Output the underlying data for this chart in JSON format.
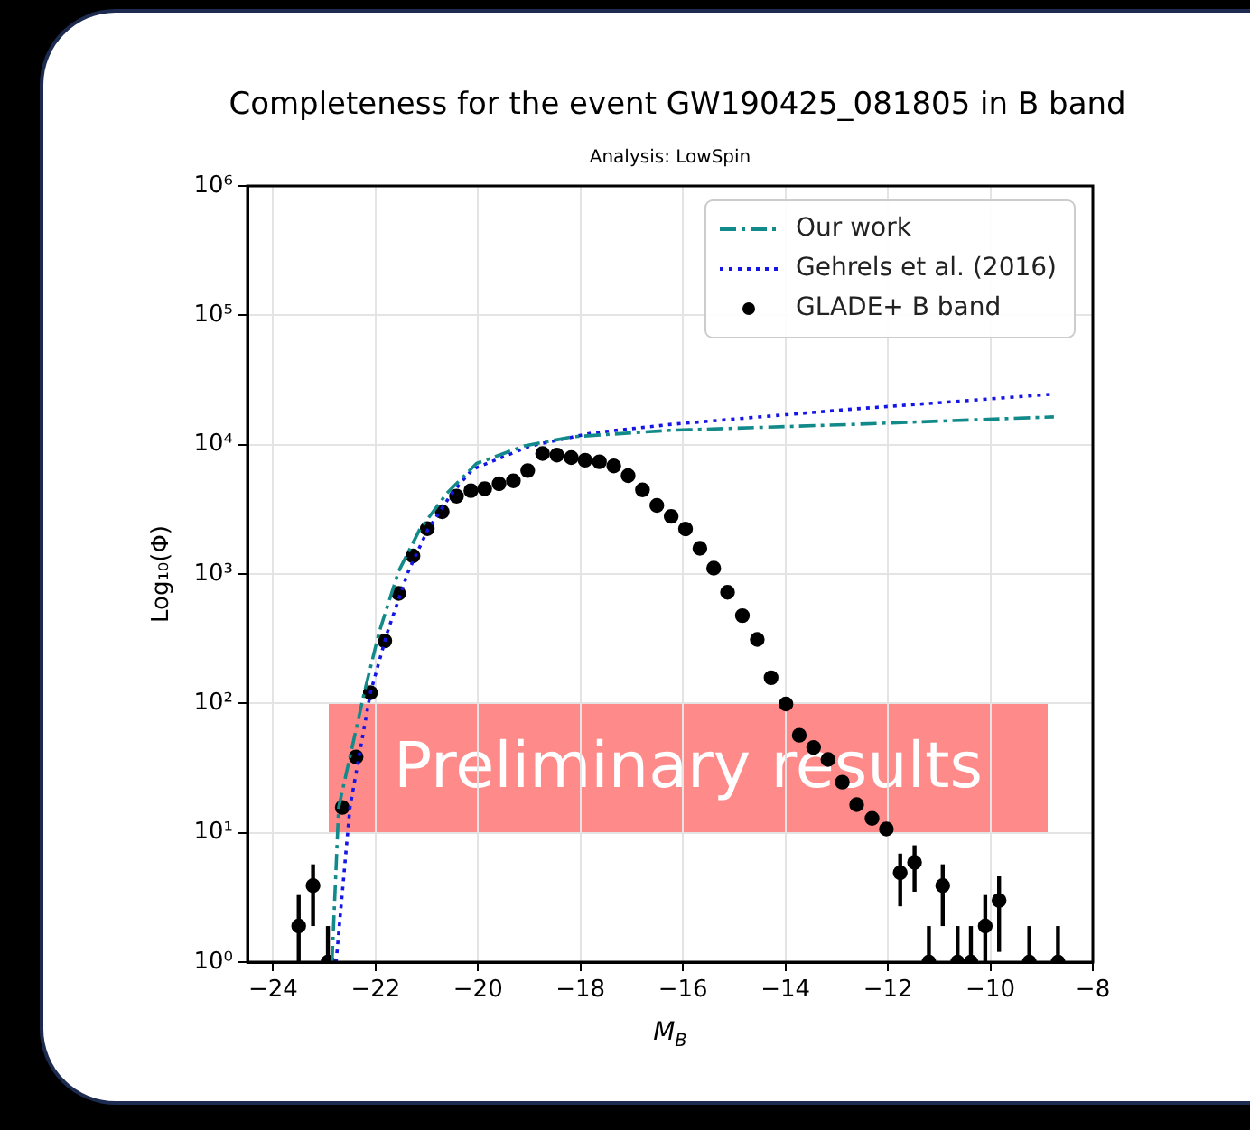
{
  "chart_data": {
    "type": "scatter",
    "title": "Completeness for the event GW190425_081805 in B band",
    "subtitle": "Analysis: LowSpin",
    "xlabel": "M$_{B}$",
    "ylabel": "Log₁₀(Φ)",
    "log": "y",
    "grid": true,
    "legend": "top right",
    "xlim": [
      -24.5,
      -8
    ],
    "xticks": [
      {
        "value": -24,
        "label": "−24"
      },
      {
        "value": -22,
        "label": "−22"
      },
      {
        "value": -20,
        "label": "−20"
      },
      {
        "value": -18,
        "label": "−18"
      },
      {
        "value": -16,
        "label": "−16"
      },
      {
        "value": -14,
        "label": "−14"
      },
      {
        "value": -12,
        "label": "−12"
      },
      {
        "value": -10,
        "label": "−10"
      },
      {
        "value": -8,
        "label": "−8"
      }
    ],
    "ylim": [
      1,
      1000000
    ],
    "yticks": [
      {
        "value": 1,
        "label": "10⁰"
      },
      {
        "value": 10,
        "label": "10¹"
      },
      {
        "value": 100,
        "label": "10²"
      },
      {
        "value": 1000,
        "label": "10³"
      },
      {
        "value": 10000,
        "label": "10⁴"
      },
      {
        "value": 100000,
        "label": "10⁵"
      },
      {
        "value": 1000000,
        "label": "10⁶"
      }
    ],
    "annotations": [
      "Preliminary results"
    ],
    "series": [
      {
        "name": "Our work",
        "type": "line",
        "line_style": "dashdot",
        "marker": "none",
        "color": "#138a8a",
        "x": [
          -22.85,
          -22.72,
          -22.22,
          -21.93,
          -21.55,
          -21.14,
          -20.61,
          -20.03,
          -19.09,
          -18.15,
          -16.27,
          -12.79,
          -8.76
        ],
        "values": [
          1,
          15.7,
          121,
          355,
          1050,
          2200,
          4200,
          7150,
          9800,
          11500,
          12900,
          14300,
          16400
        ]
      },
      {
        "name": "Gehrels et al. (2016)",
        "type": "line",
        "line_style": "dotted",
        "marker": "none",
        "color": "#1515e6",
        "x": [
          -22.77,
          -22.5,
          -22.1,
          -21.77,
          -21.36,
          -20.98,
          -20.51,
          -20.11,
          -18.97,
          -17.78,
          -16.27,
          -12.79,
          -8.81
        ],
        "values": [
          1,
          15.7,
          121,
          355,
          1050,
          2200,
          4200,
          6450,
          9800,
          12300,
          14300,
          18700,
          24500
        ]
      },
      {
        "name": "GLADE+ B band",
        "marker": "circle",
        "color": "#000000",
        "x": [
          -23.5,
          -23.22,
          -22.93,
          -22.65,
          -22.38,
          -22.1,
          -21.82,
          -21.55,
          -21.27,
          -20.99,
          -20.7,
          -20.42,
          -20.14,
          -19.87,
          -19.59,
          -19.31,
          -19.03,
          -18.74,
          -18.46,
          -18.18,
          -17.91,
          -17.63,
          -17.35,
          -17.07,
          -16.79,
          -16.51,
          -16.23,
          -15.95,
          -15.67,
          -15.4,
          -15.13,
          -14.84,
          -14.55,
          -14.28,
          -13.99,
          -13.73,
          -13.45,
          -13.17,
          -12.89,
          -12.61,
          -12.31,
          -12.03,
          -11.76,
          -11.48,
          -11.2,
          -10.93,
          -10.64,
          -10.38,
          -10.1,
          -9.83,
          -9.24,
          -8.68
        ],
        "values": [
          1.9,
          3.9,
          1,
          15.7,
          38.6,
          121,
          304,
          708,
          1380,
          2240,
          3030,
          4000,
          4410,
          4570,
          4990,
          5250,
          6310,
          8530,
          8300,
          7940,
          7590,
          7370,
          6840,
          5760,
          4470,
          3390,
          2790,
          2230,
          1580,
          1110,
          722,
          477,
          312,
          158,
          99,
          56.7,
          45.7,
          36.8,
          24.6,
          16.5,
          12.9,
          10.7,
          4.9,
          5.9,
          1,
          3.9,
          1,
          1,
          1.9,
          3,
          1,
          1
        ],
        "errors": [
          [
            1,
            3.3
          ],
          [
            1.9,
            5.7
          ],
          [
            1,
            1.9
          ],
          null,
          null,
          null,
          null,
          null,
          null,
          null,
          null,
          null,
          null,
          null,
          null,
          null,
          null,
          null,
          null,
          null,
          null,
          null,
          null,
          null,
          null,
          null,
          null,
          null,
          null,
          null,
          null,
          null,
          null,
          null,
          null,
          null,
          null,
          null,
          null,
          null,
          null,
          null,
          [
            2.7,
            6.9
          ],
          [
            3.5,
            8
          ],
          [
            1,
            1.9
          ],
          [
            1.9,
            5.7
          ],
          [
            1,
            1.9
          ],
          [
            1,
            1.9
          ],
          [
            1,
            3.3
          ],
          [
            1.2,
            4.6
          ],
          [
            1,
            1.9
          ],
          [
            1,
            1.9
          ]
        ]
      }
    ]
  }
}
